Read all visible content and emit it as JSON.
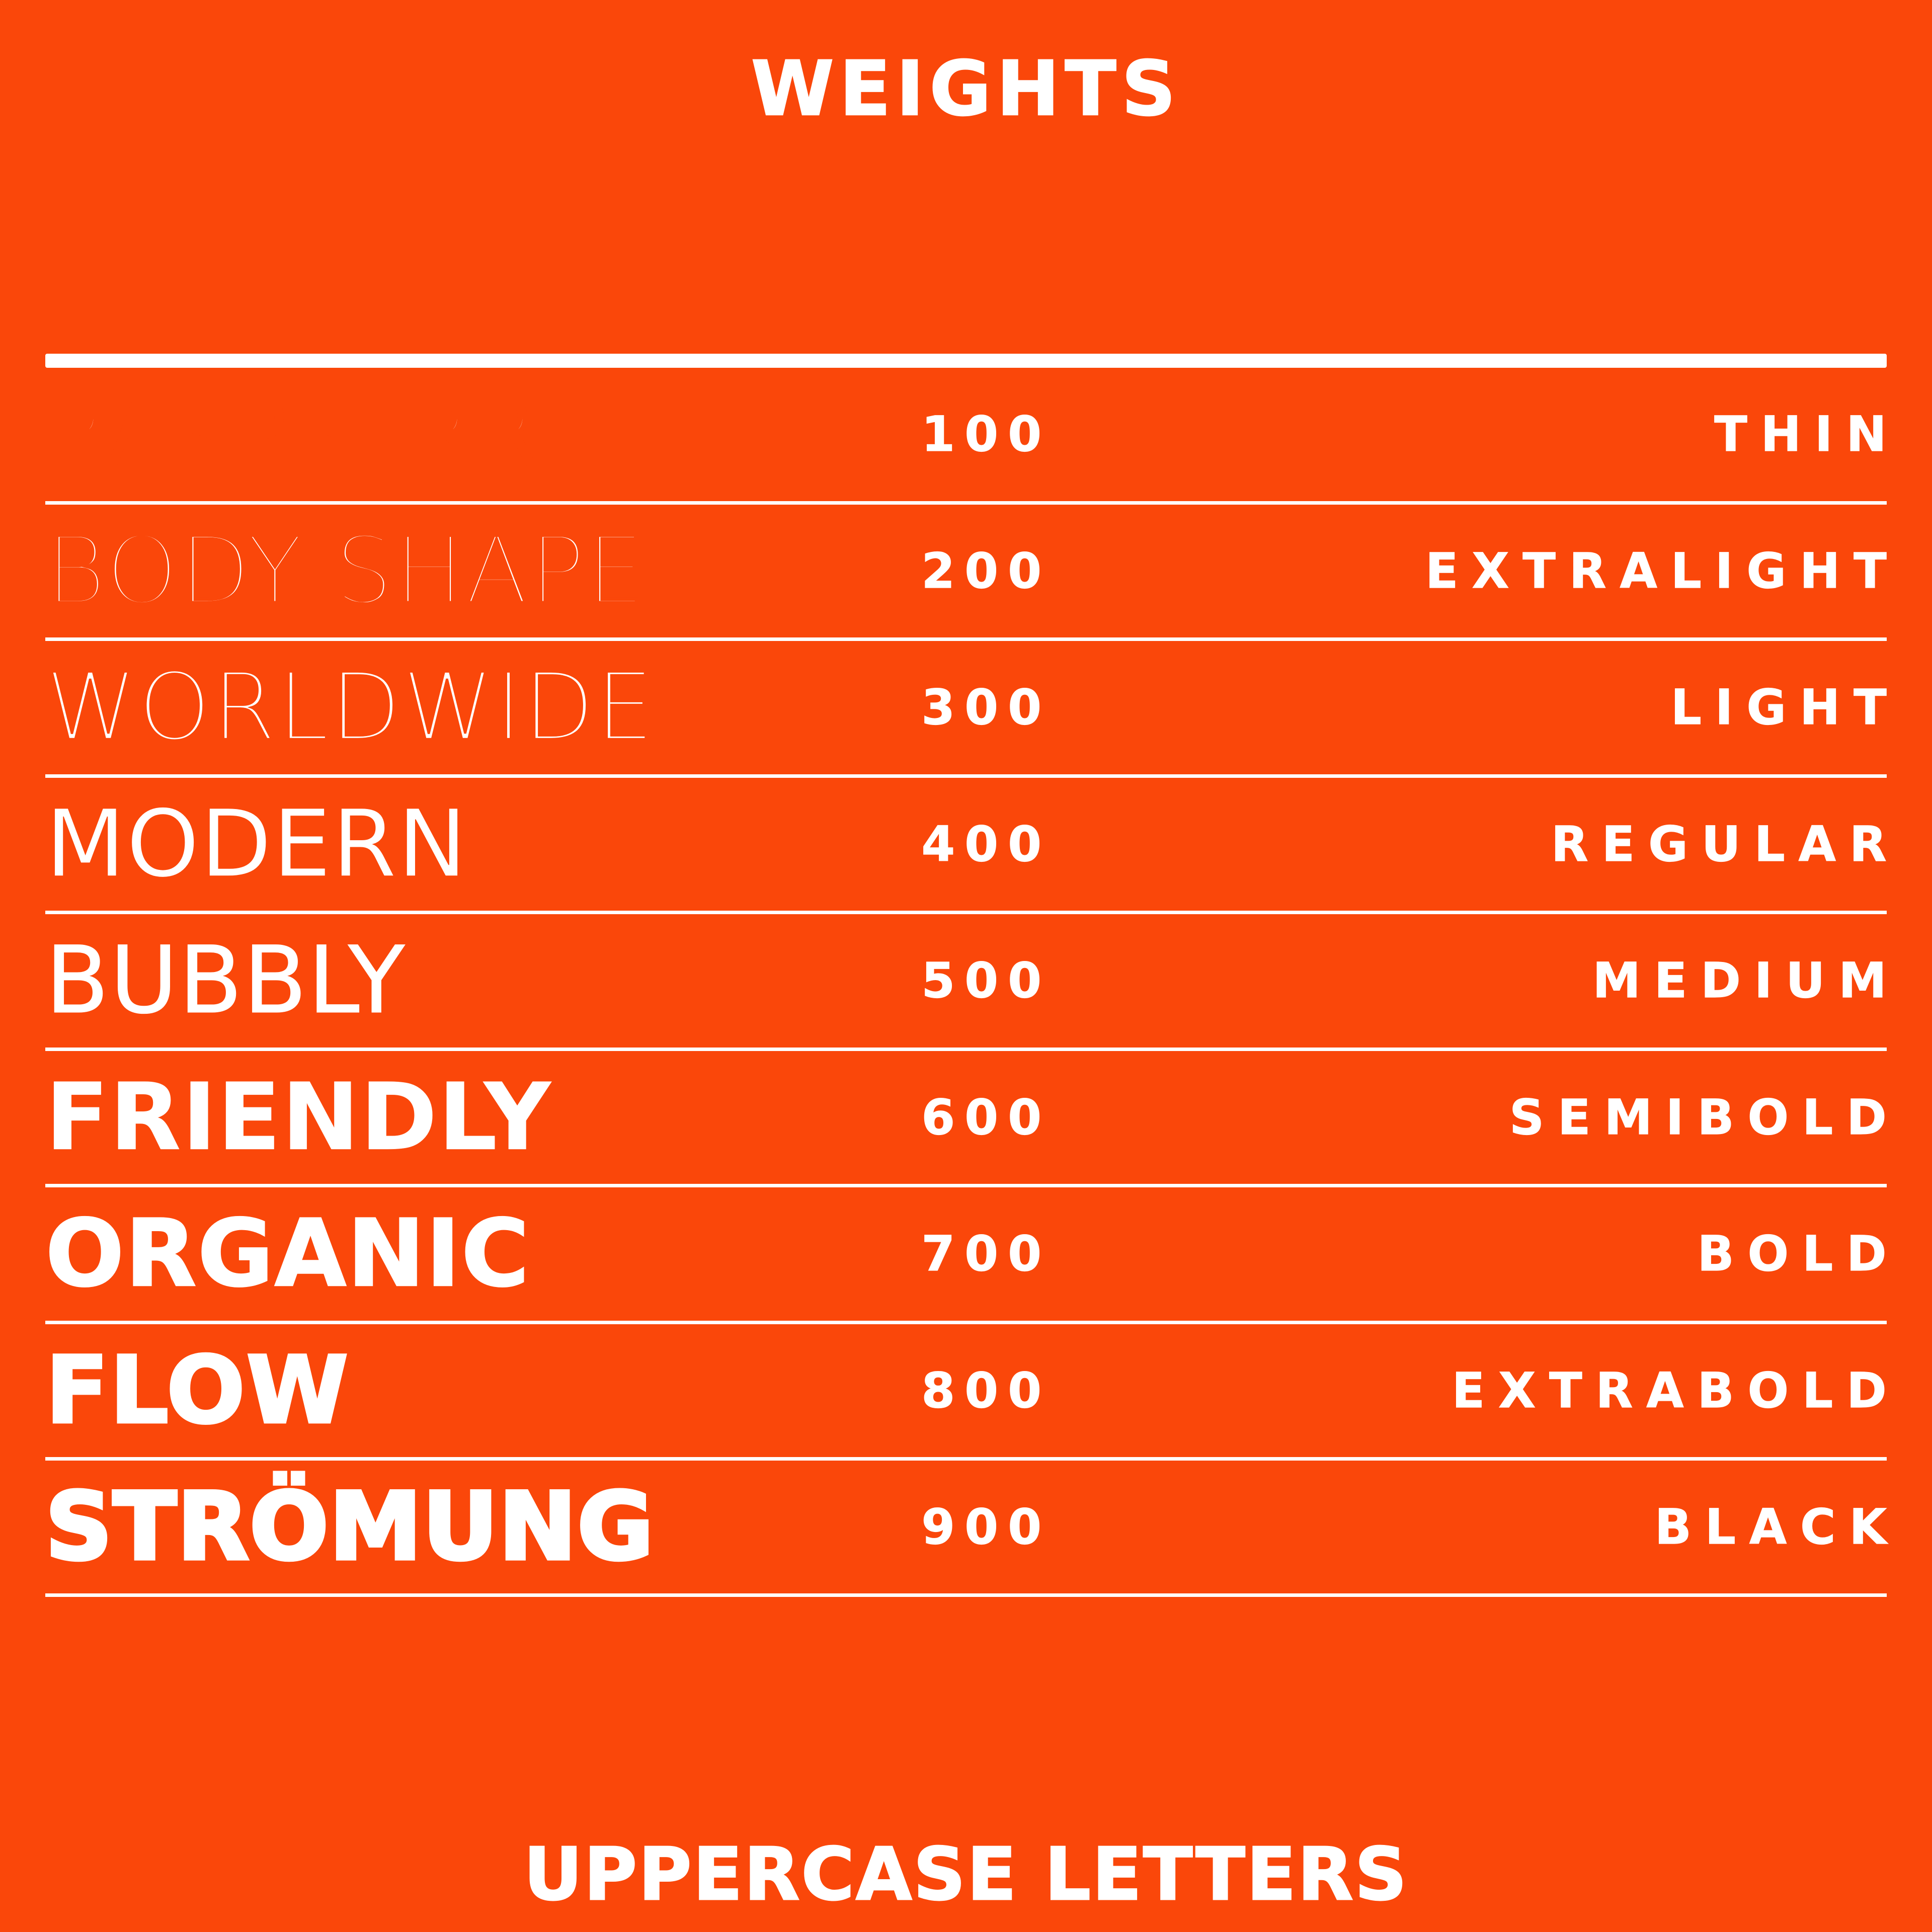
{
  "page": {
    "title": "WEIGHTS",
    "footer": "UPPERCASE LETTERS"
  },
  "colors": {
    "background": "#FA470A",
    "text": "#FFFFFF",
    "rule": "#FFFFFF"
  },
  "weights_table": {
    "rows": [
      {
        "sample": "RASPBERRY",
        "value": "100",
        "name": "THIN"
      },
      {
        "sample": "BODY SHAPE",
        "value": "200",
        "name": "EXTRALIGHT"
      },
      {
        "sample": "WORLDWIDE",
        "value": "300",
        "name": "LIGHT"
      },
      {
        "sample": "MODERN",
        "value": "400",
        "name": "REGULAR"
      },
      {
        "sample": "BUBBLY",
        "value": "500",
        "name": "MEDIUM"
      },
      {
        "sample": "FRIENDLY",
        "value": "600",
        "name": "SEMIBOLD"
      },
      {
        "sample": "ORGANIC",
        "value": "700",
        "name": "BOLD"
      },
      {
        "sample": "FLOW",
        "value": "800",
        "name": "EXTRABOLD"
      },
      {
        "sample": "STRÖMUNG",
        "value": "900",
        "name": "BLACK"
      }
    ]
  }
}
